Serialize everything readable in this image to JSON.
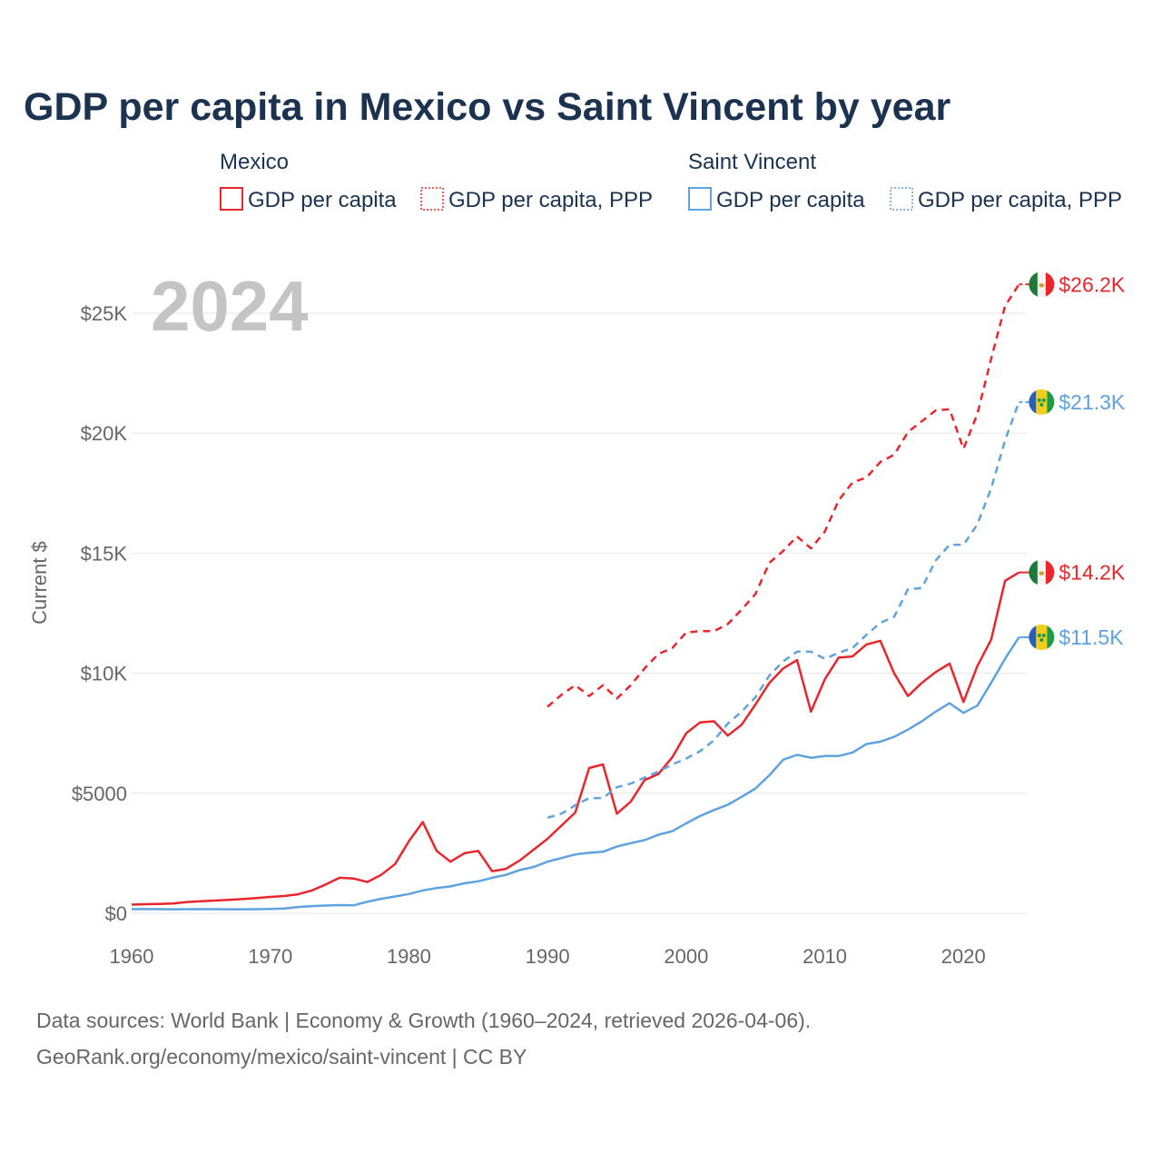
{
  "chart_data": {
    "type": "line",
    "title": "GDP per capita in Mexico vs Saint Vincent by year",
    "year_label": "2024",
    "xlabel": "",
    "ylabel": "Current $",
    "xlim": [
      1960,
      2024
    ],
    "ylim": [
      0,
      27000
    ],
    "x_ticks": [
      1960,
      1970,
      1980,
      1990,
      2000,
      2010,
      2020
    ],
    "y_ticks": [
      {
        "value": 0,
        "label": "$0"
      },
      {
        "value": 5000,
        "label": "$5000"
      },
      {
        "value": 10000,
        "label": "$10K"
      },
      {
        "value": 15000,
        "label": "$15K"
      },
      {
        "value": 20000,
        "label": "$20K"
      },
      {
        "value": 25000,
        "label": "$25K"
      }
    ],
    "legend": {
      "groups": [
        {
          "name": "Mexico",
          "items": [
            "GDP per capita",
            "GDP per capita, PPP"
          ],
          "color": "#e8262b"
        },
        {
          "name": "Saint Vincent",
          "items": [
            "GDP per capita",
            "GDP per capita, PPP"
          ],
          "color": "#5fa2e0"
        }
      ]
    },
    "series": [
      {
        "name": "Mexico GDP per capita",
        "country": "Mexico",
        "color": "#e8262b",
        "dashed": false,
        "end_label": "$14.2K",
        "x": [
          1960,
          1961,
          1962,
          1963,
          1964,
          1965,
          1966,
          1967,
          1968,
          1969,
          1970,
          1971,
          1972,
          1973,
          1974,
          1975,
          1976,
          1977,
          1978,
          1979,
          1980,
          1981,
          1982,
          1983,
          1984,
          1985,
          1986,
          1987,
          1988,
          1989,
          1990,
          1991,
          1992,
          1993,
          1994,
          1995,
          1996,
          1997,
          1998,
          1999,
          2000,
          2001,
          2002,
          2003,
          2004,
          2005,
          2006,
          2007,
          2008,
          2009,
          2010,
          2011,
          2012,
          2013,
          2014,
          2015,
          2016,
          2017,
          2018,
          2019,
          2020,
          2021,
          2022,
          2023,
          2024
        ],
        "values": [
          360,
          380,
          390,
          410,
          470,
          500,
          530,
          560,
          590,
          630,
          680,
          720,
          790,
          950,
          1200,
          1480,
          1450,
          1300,
          1600,
          2050,
          3000,
          3800,
          2600,
          2150,
          2500,
          2600,
          1750,
          1850,
          2200,
          2650,
          3100,
          3650,
          4200,
          6050,
          6200,
          4150,
          4650,
          5550,
          5800,
          6500,
          7500,
          7950,
          8000,
          7400,
          7850,
          8700,
          9600,
          10200,
          10550,
          8400,
          9750,
          10650,
          10700,
          11200,
          11350,
          10000,
          9050,
          9600,
          10050,
          10400,
          8800,
          10300,
          11400,
          13850,
          14200
        ]
      },
      {
        "name": "Mexico GDP per capita, PPP",
        "country": "Mexico",
        "color": "#e8262b",
        "dashed": true,
        "end_label": "$26.2K",
        "x": [
          1990,
          1991,
          1992,
          1993,
          1994,
          1995,
          1996,
          1997,
          1998,
          1999,
          2000,
          2001,
          2002,
          2003,
          2004,
          2005,
          2006,
          2007,
          2008,
          2009,
          2010,
          2011,
          2012,
          2013,
          2014,
          2015,
          2016,
          2017,
          2018,
          2019,
          2020,
          2021,
          2022,
          2023,
          2024
        ],
        "values": [
          8600,
          9100,
          9500,
          9050,
          9500,
          8950,
          9500,
          10200,
          10800,
          11050,
          11700,
          11750,
          11750,
          12050,
          12650,
          13300,
          14600,
          15100,
          15700,
          15200,
          15900,
          17200,
          17950,
          18150,
          18800,
          19100,
          20050,
          20500,
          20950,
          21000,
          19350,
          20800,
          23100,
          25300,
          26200
        ]
      },
      {
        "name": "Saint Vincent GDP per capita",
        "country": "Saint Vincent",
        "color": "#5fa2e0",
        "dashed": false,
        "end_label": "$11.5K",
        "x": [
          1960,
          1961,
          1962,
          1963,
          1964,
          1965,
          1966,
          1967,
          1968,
          1969,
          1970,
          1971,
          1972,
          1973,
          1974,
          1975,
          1976,
          1977,
          1978,
          1979,
          1980,
          1981,
          1982,
          1983,
          1984,
          1985,
          1986,
          1987,
          1988,
          1989,
          1990,
          1991,
          1992,
          1993,
          1994,
          1995,
          1996,
          1997,
          1998,
          1999,
          2000,
          2001,
          2002,
          2003,
          2004,
          2005,
          2006,
          2007,
          2008,
          2009,
          2010,
          2011,
          2012,
          2013,
          2014,
          2015,
          2016,
          2017,
          2018,
          2019,
          2020,
          2021,
          2022,
          2023,
          2024
        ],
        "values": [
          170,
          175,
          170,
          165,
          170,
          170,
          170,
          165,
          165,
          170,
          180,
          200,
          260,
          300,
          320,
          340,
          330,
          480,
          600,
          700,
          800,
          950,
          1050,
          1120,
          1250,
          1330,
          1480,
          1600,
          1800,
          1930,
          2150,
          2300,
          2450,
          2520,
          2560,
          2780,
          2920,
          3050,
          3270,
          3420,
          3750,
          4050,
          4300,
          4520,
          4850,
          5200,
          5750,
          6400,
          6600,
          6480,
          6550,
          6550,
          6700,
          7050,
          7150,
          7350,
          7650,
          8000,
          8400,
          8750,
          8350,
          8650,
          9600,
          10600,
          11500
        ]
      },
      {
        "name": "Saint Vincent GDP per capita, PPP",
        "country": "Saint Vincent",
        "color": "#5fa2e0",
        "dashed": true,
        "end_label": "$21.3K",
        "x": [
          1990,
          1991,
          1992,
          1993,
          1994,
          1995,
          1996,
          1997,
          1998,
          1999,
          2000,
          2001,
          2002,
          2003,
          2004,
          2005,
          2006,
          2007,
          2008,
          2009,
          2010,
          2011,
          2012,
          2013,
          2014,
          2015,
          2016,
          2017,
          2018,
          2019,
          2020,
          2021,
          2022,
          2023,
          2024
        ],
        "values": [
          3980,
          4150,
          4500,
          4800,
          4800,
          5250,
          5400,
          5650,
          5900,
          6200,
          6450,
          6750,
          7200,
          7900,
          8400,
          9000,
          9900,
          10500,
          10900,
          10900,
          10600,
          10850,
          11050,
          11600,
          12100,
          12350,
          13500,
          13550,
          14700,
          15350,
          15350,
          16200,
          17700,
          19700,
          21300
        ]
      }
    ]
  },
  "footer": {
    "line1": "Data sources: World Bank | Economy & Growth (1960–2024, retrieved 2026-04-06).",
    "line2": "GeoRank.org/economy/mexico/saint-vincent | CC BY"
  }
}
